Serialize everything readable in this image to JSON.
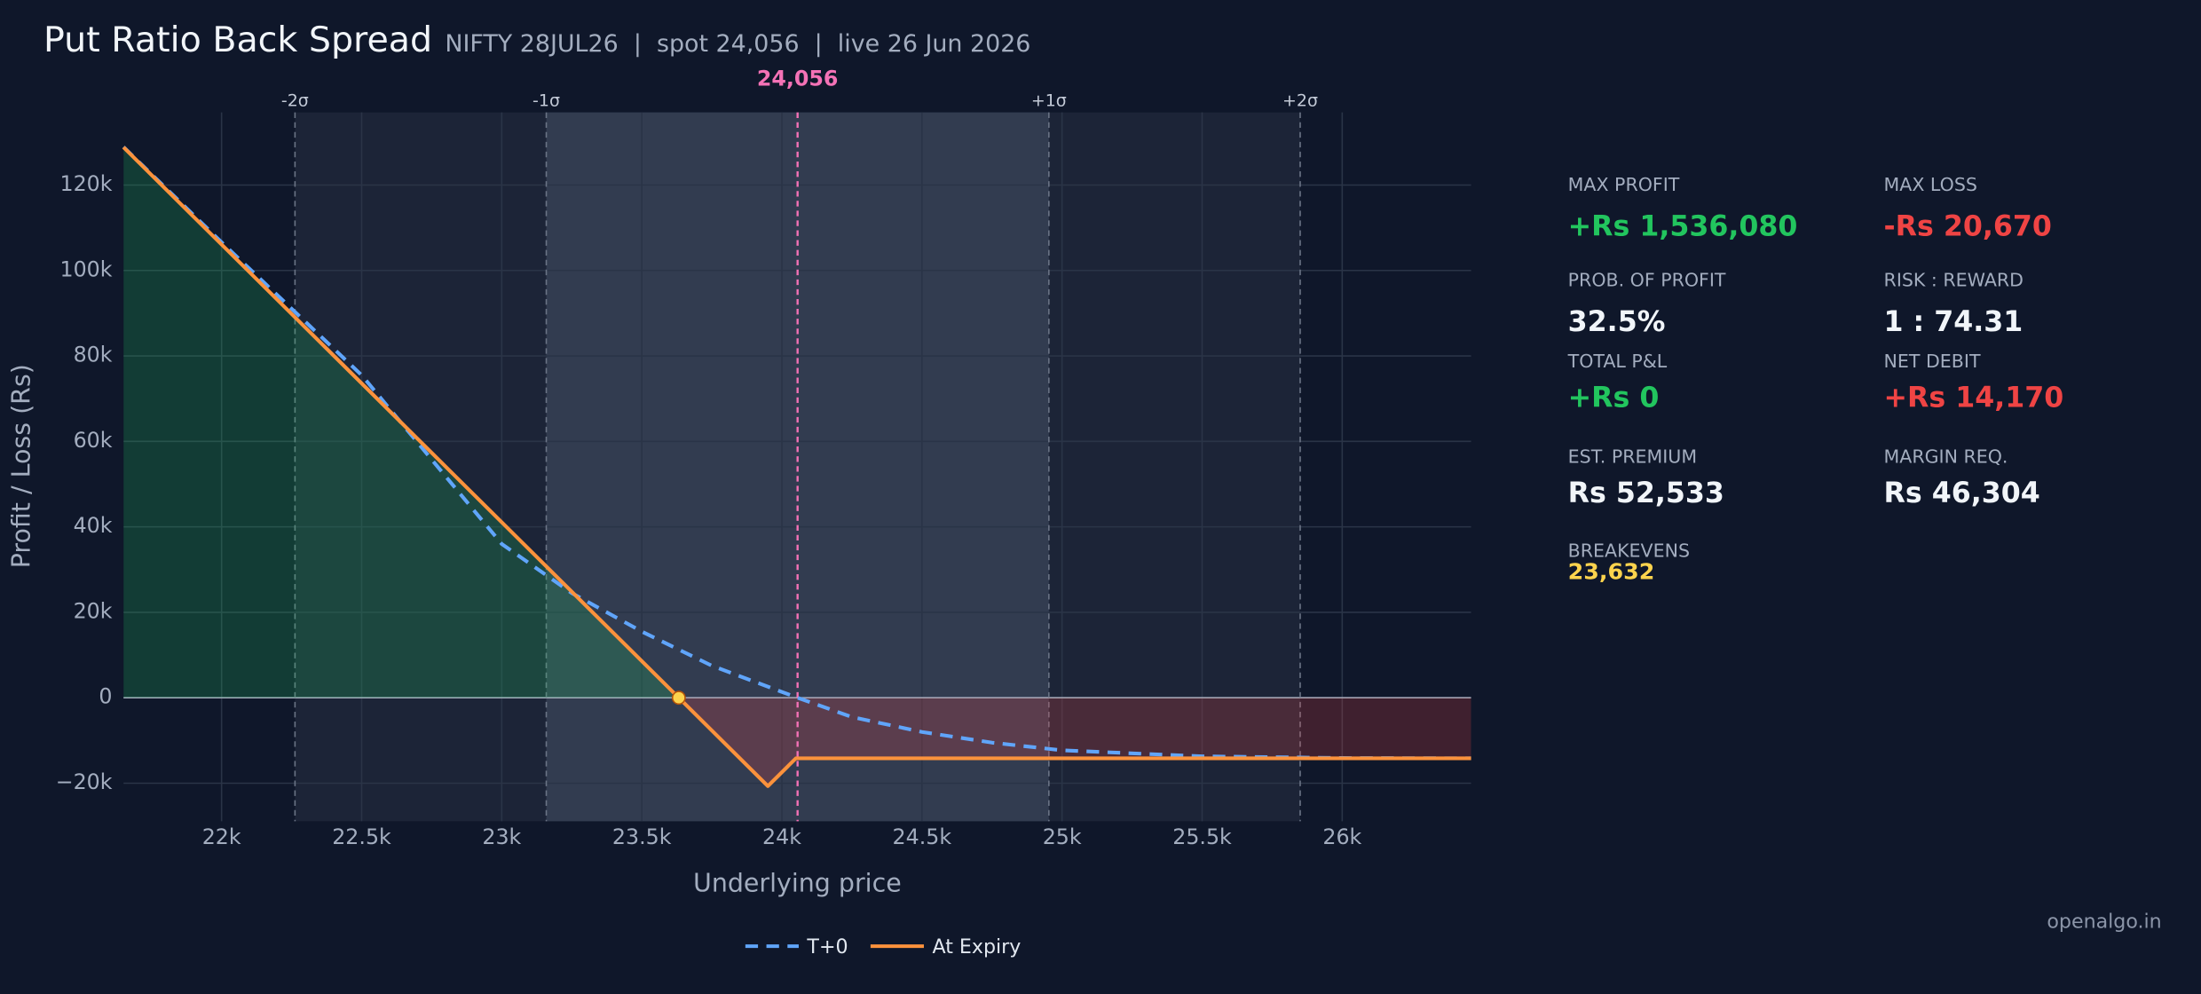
{
  "chart_data": {
    "type": "line",
    "title": "Put Ratio Back Spread",
    "subtitle": "NIFTY 28JUL26  |  spot 24,056  |  live 26 Jun 2026",
    "x_label": "Underlying price",
    "y_label": "Profit / Loss (Rs)",
    "xlim": [
      21650,
      26460
    ],
    "ylim": [
      -28900,
      137000
    ],
    "xticks": [
      {
        "value": 22000,
        "label": "22k"
      },
      {
        "value": 22500,
        "label": "22.5k"
      },
      {
        "value": 23000,
        "label": "23k"
      },
      {
        "value": 23500,
        "label": "23.5k"
      },
      {
        "value": 24000,
        "label": "24k"
      },
      {
        "value": 24500,
        "label": "24.5k"
      },
      {
        "value": 25000,
        "label": "25k"
      },
      {
        "value": 25500,
        "label": "25.5k"
      },
      {
        "value": 26000,
        "label": "26k"
      }
    ],
    "yticks": [
      {
        "value": -20000,
        "label": "−20k"
      },
      0,
      {
        "value": 20000,
        "label": "20k"
      },
      {
        "value": 40000,
        "label": "40k"
      },
      {
        "value": 60000,
        "label": "60k"
      },
      {
        "value": 80000,
        "label": "80k"
      },
      {
        "value": 100000,
        "label": "100k"
      },
      {
        "value": 120000,
        "label": "120k"
      }
    ],
    "grid": true,
    "spot": {
      "value": 24056,
      "label": "24,056"
    },
    "sigma_lines": [
      {
        "value": 22262,
        "label": "-2σ"
      },
      {
        "value": 23159,
        "label": "-1σ"
      },
      {
        "value": 24953,
        "label": "+1σ"
      },
      {
        "value": 25850,
        "label": "+2σ"
      }
    ],
    "breakeven": 23632,
    "series": [
      {
        "name": "T+0",
        "color": "#60a5fa",
        "dash": true,
        "x": [
          21650,
          22000,
          22500,
          23000,
          23250,
          23500,
          23750,
          24056,
          24250,
          24500,
          24750,
          25000,
          25500,
          26000,
          26460
        ],
        "values": [
          128900,
          106600,
          75500,
          36000,
          24500,
          15500,
          7500,
          0,
          -4500,
          -8000,
          -10500,
          -12300,
          -13700,
          -14100,
          -14170
        ]
      },
      {
        "name": "At Expiry",
        "color": "#fb923c",
        "dash": false,
        "x": [
          21650,
          23632,
          23950,
          24050,
          26460
        ],
        "values": [
          128830,
          0,
          -20670,
          -14170,
          -14170
        ]
      }
    ]
  },
  "stats": [
    {
      "label": "MAX PROFIT",
      "value": "+Rs 1,536,080",
      "color": "#22c55e"
    },
    {
      "label": "MAX LOSS",
      "value": "-Rs 20,670",
      "color": "#ef4444"
    },
    {
      "label": "PROB. OF PROFIT",
      "value": "32.5%",
      "color": "#f1f5f9"
    },
    {
      "label": "RISK : REWARD",
      "value": "1 : 74.31",
      "color": "#f1f5f9"
    },
    {
      "label": "TOTAL P&L",
      "value": "+Rs 0",
      "color": "#22c55e"
    },
    {
      "label": "NET DEBIT",
      "value": "+Rs 14,170",
      "color": "#ef4444"
    },
    {
      "label": "EST. PREMIUM",
      "value": "Rs 52,533",
      "color": "#f1f5f9"
    },
    {
      "label": "MARGIN REQ.",
      "value": "Rs 46,304",
      "color": "#f1f5f9"
    },
    {
      "label": "BREAKEVENS",
      "value": "23,632",
      "color": "#fcd34d"
    }
  ],
  "footer": "openalgo.in"
}
